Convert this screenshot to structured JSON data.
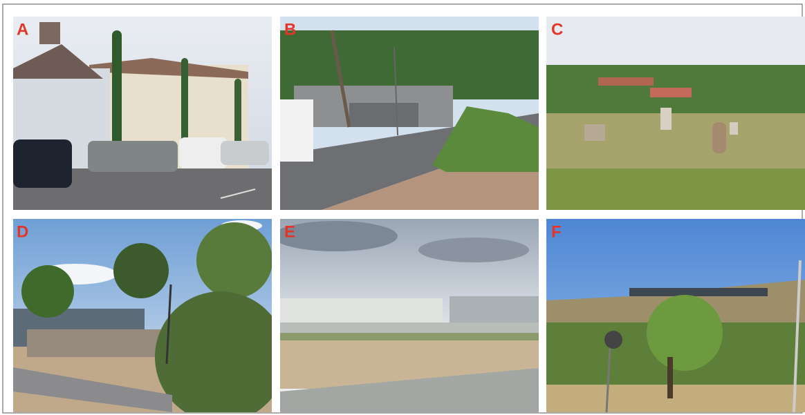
{
  "panels": [
    {
      "label": "A"
    },
    {
      "label": "B"
    },
    {
      "label": "C"
    },
    {
      "label": "D"
    },
    {
      "label": "E"
    },
    {
      "label": "F"
    }
  ]
}
